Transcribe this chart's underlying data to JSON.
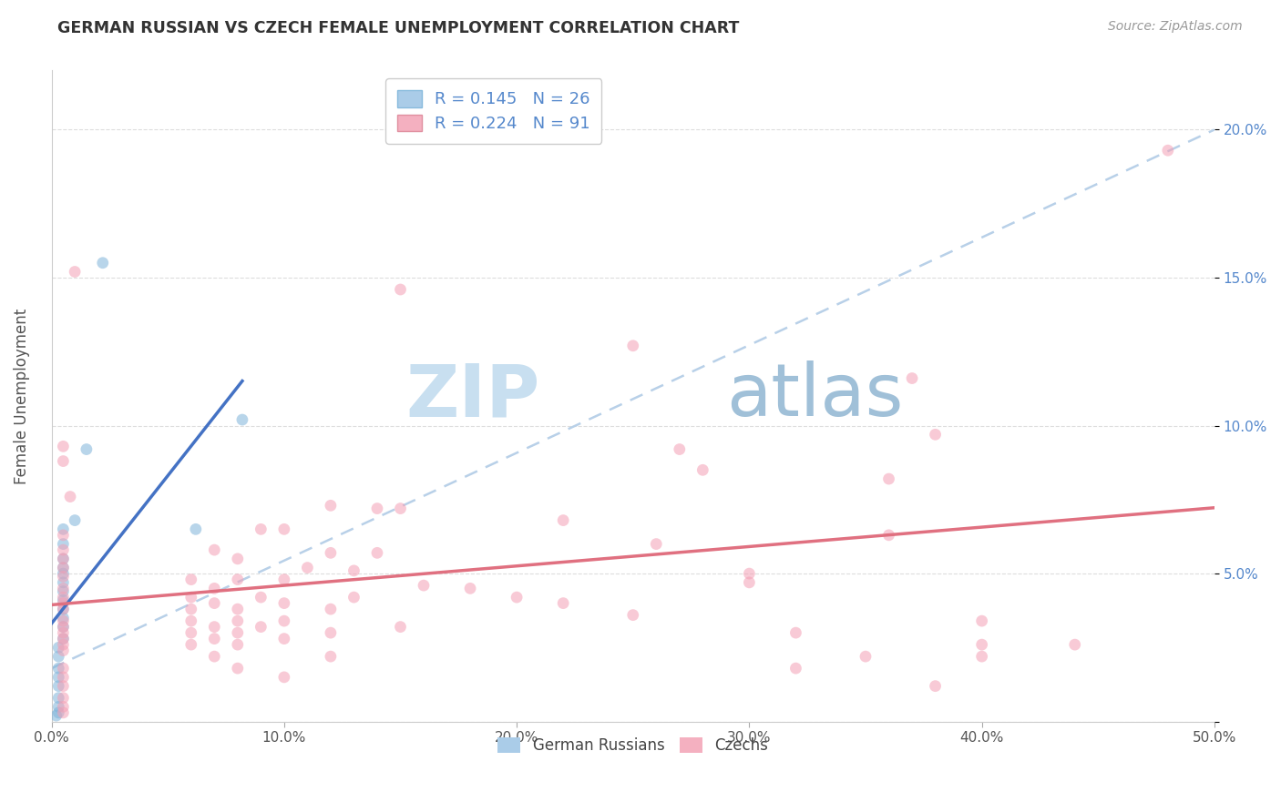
{
  "title": "GERMAN RUSSIAN VS CZECH FEMALE UNEMPLOYMENT CORRELATION CHART",
  "source": "Source: ZipAtlas.com",
  "ylabel": "Female Unemployment",
  "xlim": [
    0.0,
    0.5
  ],
  "ylim": [
    0.0,
    0.22
  ],
  "xticks": [
    0.0,
    0.1,
    0.2,
    0.3,
    0.4,
    0.5
  ],
  "xticklabels": [
    "0.0%",
    "10.0%",
    "20.0%",
    "30.0%",
    "40.0%",
    "50.0%"
  ],
  "yticks": [
    0.0,
    0.05,
    0.1,
    0.15,
    0.2
  ],
  "right_yticklabels": [
    "",
    "5.0%",
    "10.0%",
    "15.0%",
    "20.0%"
  ],
  "german_russian_dots": [
    [
      0.022,
      0.155
    ],
    [
      0.015,
      0.092
    ],
    [
      0.01,
      0.068
    ],
    [
      0.005,
      0.065
    ],
    [
      0.005,
      0.06
    ],
    [
      0.005,
      0.055
    ],
    [
      0.005,
      0.052
    ],
    [
      0.005,
      0.05
    ],
    [
      0.005,
      0.047
    ],
    [
      0.005,
      0.044
    ],
    [
      0.005,
      0.041
    ],
    [
      0.005,
      0.038
    ],
    [
      0.005,
      0.035
    ],
    [
      0.005,
      0.032
    ],
    [
      0.005,
      0.028
    ],
    [
      0.003,
      0.025
    ],
    [
      0.003,
      0.022
    ],
    [
      0.003,
      0.018
    ],
    [
      0.003,
      0.015
    ],
    [
      0.003,
      0.012
    ],
    [
      0.003,
      0.008
    ],
    [
      0.003,
      0.005
    ],
    [
      0.003,
      0.003
    ],
    [
      0.002,
      0.002
    ],
    [
      0.082,
      0.102
    ],
    [
      0.062,
      0.065
    ]
  ],
  "czech_dots": [
    [
      0.48,
      0.193
    ],
    [
      0.01,
      0.152
    ],
    [
      0.25,
      0.127
    ],
    [
      0.15,
      0.146
    ],
    [
      0.37,
      0.116
    ],
    [
      0.38,
      0.097
    ],
    [
      0.27,
      0.092
    ],
    [
      0.005,
      0.093
    ],
    [
      0.005,
      0.088
    ],
    [
      0.28,
      0.085
    ],
    [
      0.36,
      0.082
    ],
    [
      0.008,
      0.076
    ],
    [
      0.12,
      0.073
    ],
    [
      0.14,
      0.072
    ],
    [
      0.15,
      0.072
    ],
    [
      0.22,
      0.068
    ],
    [
      0.09,
      0.065
    ],
    [
      0.1,
      0.065
    ],
    [
      0.005,
      0.063
    ],
    [
      0.36,
      0.063
    ],
    [
      0.26,
      0.06
    ],
    [
      0.005,
      0.058
    ],
    [
      0.07,
      0.058
    ],
    [
      0.12,
      0.057
    ],
    [
      0.14,
      0.057
    ],
    [
      0.005,
      0.055
    ],
    [
      0.08,
      0.055
    ],
    [
      0.005,
      0.052
    ],
    [
      0.11,
      0.052
    ],
    [
      0.13,
      0.051
    ],
    [
      0.3,
      0.05
    ],
    [
      0.005,
      0.049
    ],
    [
      0.06,
      0.048
    ],
    [
      0.08,
      0.048
    ],
    [
      0.1,
      0.048
    ],
    [
      0.3,
      0.047
    ],
    [
      0.16,
      0.046
    ],
    [
      0.005,
      0.045
    ],
    [
      0.07,
      0.045
    ],
    [
      0.18,
      0.045
    ],
    [
      0.005,
      0.042
    ],
    [
      0.06,
      0.042
    ],
    [
      0.09,
      0.042
    ],
    [
      0.13,
      0.042
    ],
    [
      0.2,
      0.042
    ],
    [
      0.005,
      0.04
    ],
    [
      0.07,
      0.04
    ],
    [
      0.1,
      0.04
    ],
    [
      0.22,
      0.04
    ],
    [
      0.005,
      0.038
    ],
    [
      0.06,
      0.038
    ],
    [
      0.08,
      0.038
    ],
    [
      0.12,
      0.038
    ],
    [
      0.25,
      0.036
    ],
    [
      0.005,
      0.034
    ],
    [
      0.06,
      0.034
    ],
    [
      0.08,
      0.034
    ],
    [
      0.1,
      0.034
    ],
    [
      0.4,
      0.034
    ],
    [
      0.005,
      0.032
    ],
    [
      0.07,
      0.032
    ],
    [
      0.09,
      0.032
    ],
    [
      0.15,
      0.032
    ],
    [
      0.005,
      0.03
    ],
    [
      0.06,
      0.03
    ],
    [
      0.08,
      0.03
    ],
    [
      0.12,
      0.03
    ],
    [
      0.32,
      0.03
    ],
    [
      0.005,
      0.028
    ],
    [
      0.07,
      0.028
    ],
    [
      0.1,
      0.028
    ],
    [
      0.005,
      0.026
    ],
    [
      0.06,
      0.026
    ],
    [
      0.08,
      0.026
    ],
    [
      0.4,
      0.026
    ],
    [
      0.44,
      0.026
    ],
    [
      0.005,
      0.024
    ],
    [
      0.07,
      0.022
    ],
    [
      0.12,
      0.022
    ],
    [
      0.35,
      0.022
    ],
    [
      0.4,
      0.022
    ],
    [
      0.005,
      0.018
    ],
    [
      0.08,
      0.018
    ],
    [
      0.32,
      0.018
    ],
    [
      0.005,
      0.015
    ],
    [
      0.1,
      0.015
    ],
    [
      0.005,
      0.012
    ],
    [
      0.38,
      0.012
    ],
    [
      0.005,
      0.008
    ],
    [
      0.005,
      0.005
    ],
    [
      0.005,
      0.003
    ]
  ],
  "german_russian_color": "#7fb3d9",
  "czech_color": "#f4a0b5",
  "german_russian_line_color": "#4472c4",
  "czech_line_color": "#e07080",
  "dashed_line_color": "#b8d0e8",
  "dot_size": 85,
  "dot_alpha": 0.55,
  "background_color": "#ffffff",
  "watermark_zip_color": "#c8dff0",
  "watermark_atlas_color": "#a0c0d8",
  "grid_color": "#dddddd",
  "right_tick_color": "#5588cc",
  "legend_r_color": "#5588cc",
  "legend_n_color": "#33aa33",
  "legend_label_color": "#222222"
}
